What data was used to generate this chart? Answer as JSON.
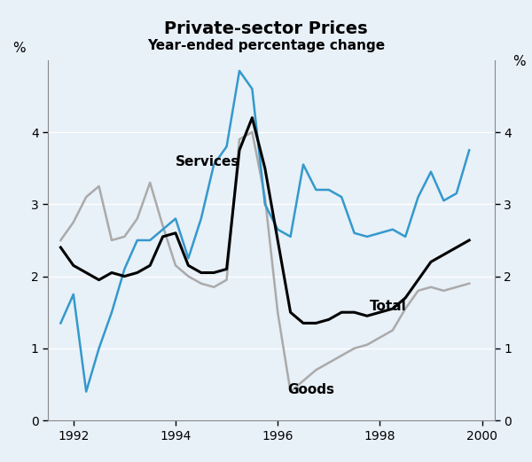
{
  "title": "Private-sector Prices",
  "subtitle": "Year-ended percentage change",
  "ylabel_left": "%",
  "ylabel_right": "%",
  "ylim": [
    0,
    5
  ],
  "yticks": [
    0,
    1,
    2,
    3,
    4
  ],
  "xlim": [
    1991.5,
    2000.25
  ],
  "xticks": [
    1992,
    1994,
    1996,
    1998,
    2000
  ],
  "background_color": "#e8f0f8",
  "plot_background": "#e8f0f8",
  "services_color": "#3399cc",
  "total_color": "#000000",
  "goods_color": "#aaaaaa",
  "services_label": "Services",
  "total_label": "Total",
  "goods_label": "Goods",
  "services_x": [
    1991.75,
    1992.0,
    1992.25,
    1992.5,
    1992.75,
    1993.0,
    1993.25,
    1993.5,
    1993.75,
    1994.0,
    1994.25,
    1994.5,
    1994.75,
    1995.0,
    1995.25,
    1995.5,
    1995.75,
    1996.0,
    1996.25,
    1996.5,
    1996.75,
    1997.0,
    1997.25,
    1997.5,
    1997.75,
    1998.0,
    1998.25,
    1998.5,
    1998.75,
    1999.0,
    1999.25,
    1999.5,
    1999.75
  ],
  "services_y": [
    1.35,
    1.75,
    0.4,
    1.0,
    1.5,
    2.1,
    2.5,
    2.5,
    2.65,
    2.8,
    2.25,
    2.8,
    3.55,
    3.8,
    4.85,
    4.6,
    3.0,
    2.65,
    2.55,
    3.55,
    3.2,
    3.2,
    3.1,
    2.6,
    2.55,
    2.6,
    2.65,
    2.55,
    3.1,
    3.45,
    3.05,
    3.15,
    3.75
  ],
  "total_x": [
    1991.75,
    1992.0,
    1992.25,
    1992.5,
    1992.75,
    1993.0,
    1993.25,
    1993.5,
    1993.75,
    1994.0,
    1994.25,
    1994.5,
    1994.75,
    1995.0,
    1995.25,
    1995.5,
    1995.75,
    1996.0,
    1996.25,
    1996.5,
    1996.75,
    1997.0,
    1997.25,
    1997.5,
    1997.75,
    1998.0,
    1998.25,
    1998.5,
    1998.75,
    1999.0,
    1999.25,
    1999.5,
    1999.75
  ],
  "total_y": [
    2.4,
    2.15,
    2.05,
    1.95,
    2.05,
    2.0,
    2.05,
    2.15,
    2.55,
    2.6,
    2.15,
    2.05,
    2.05,
    2.1,
    3.75,
    4.2,
    3.5,
    2.5,
    1.5,
    1.35,
    1.35,
    1.4,
    1.5,
    1.5,
    1.45,
    1.5,
    1.55,
    1.7,
    1.95,
    2.2,
    2.3,
    2.4,
    2.5
  ],
  "goods_x": [
    1991.75,
    1992.0,
    1992.25,
    1992.5,
    1992.75,
    1993.0,
    1993.25,
    1993.5,
    1993.75,
    1994.0,
    1994.25,
    1994.5,
    1994.75,
    1995.0,
    1995.25,
    1995.5,
    1995.75,
    1996.0,
    1996.25,
    1996.5,
    1996.75,
    1997.0,
    1997.25,
    1997.5,
    1997.75,
    1998.0,
    1998.25,
    1998.5,
    1998.75,
    1999.0,
    1999.25,
    1999.5,
    1999.75
  ],
  "goods_y": [
    2.5,
    2.75,
    3.1,
    3.25,
    2.5,
    2.55,
    2.8,
    3.3,
    2.7,
    2.15,
    2.0,
    1.9,
    1.85,
    1.95,
    3.9,
    4.0,
    3.1,
    1.5,
    0.4,
    0.55,
    0.7,
    0.8,
    0.9,
    1.0,
    1.05,
    1.15,
    1.25,
    1.55,
    1.8,
    1.85,
    1.8,
    1.85,
    1.9
  ],
  "services_ann_x": 1994.0,
  "services_ann_y": 3.5,
  "total_ann_x": 1997.8,
  "total_ann_y": 1.68,
  "goods_ann_x": 1996.2,
  "goods_ann_y": 0.52
}
